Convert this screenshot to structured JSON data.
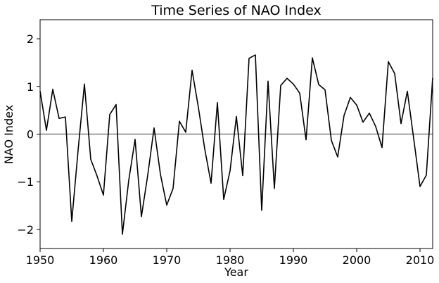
{
  "chart_data": {
    "type": "line",
    "title": "Time Series of NAO Index",
    "xlabel": "Year",
    "ylabel": "NAO Index",
    "xlim": [
      1950,
      2012
    ],
    "ylim": [
      -2.4,
      2.4
    ],
    "x_ticks": [
      1950,
      1960,
      1970,
      1980,
      1990,
      2000,
      2010
    ],
    "y_ticks": [
      -2,
      -1,
      0,
      1,
      2
    ],
    "reference_line": {
      "y": 0,
      "color": "#808080"
    },
    "grid": false,
    "series": [
      {
        "color": "#000000",
        "x": [
          1950,
          1951,
          1952,
          1953,
          1954,
          1955,
          1956,
          1957,
          1958,
          1959,
          1960,
          1961,
          1962,
          1963,
          1964,
          1965,
          1966,
          1967,
          1968,
          1969,
          1970,
          1971,
          1972,
          1973,
          1974,
          1975,
          1976,
          1977,
          1978,
          1979,
          1980,
          1981,
          1982,
          1983,
          1984,
          1985,
          1986,
          1987,
          1988,
          1989,
          1990,
          1991,
          1992,
          1993,
          1994,
          1995,
          1996,
          1997,
          1998,
          1999,
          2000,
          2001,
          2002,
          2003,
          2004,
          2005,
          2006,
          2007,
          2008,
          2009,
          2010,
          2011,
          2012
        ],
        "y": [
          0.9,
          0.08,
          0.94,
          0.33,
          0.36,
          -1.83,
          -0.34,
          1.05,
          -0.53,
          -0.88,
          -1.28,
          0.41,
          0.62,
          -2.1,
          -0.97,
          -0.11,
          -1.73,
          -0.86,
          0.13,
          -0.84,
          -1.49,
          -1.14,
          0.27,
          0.04,
          1.34,
          0.56,
          -0.31,
          -1.03,
          0.66,
          -1.37,
          -0.77,
          0.37,
          -0.87,
          1.59,
          1.66,
          -1.6,
          1.11,
          -1.14,
          1.02,
          1.17,
          1.05,
          0.86,
          -0.12,
          1.6,
          1.04,
          0.93,
          -0.13,
          -0.48,
          0.39,
          0.77,
          0.61,
          0.25,
          0.44,
          0.16,
          -0.28,
          1.52,
          1.27,
          0.22,
          0.9,
          -0.09,
          -1.1,
          -0.86,
          1.18
        ]
      }
    ]
  }
}
